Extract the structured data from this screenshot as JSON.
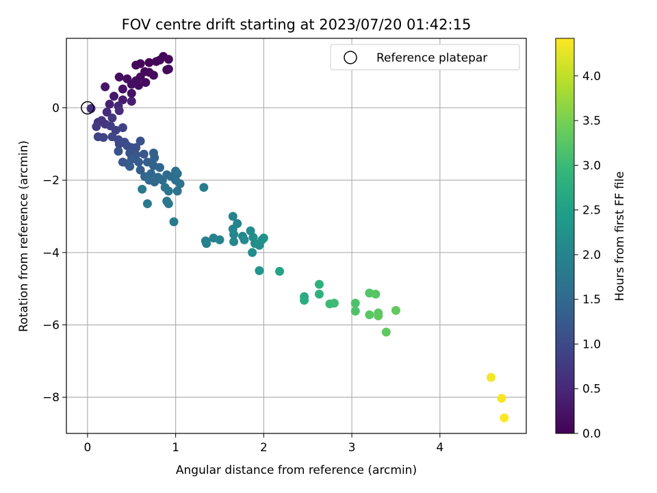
{
  "chart_data": {
    "type": "scatter",
    "title": "FOV centre drift starting at 2023/07/20 01:42:15",
    "xlabel": "Angular distance from reference (arcmin)",
    "ylabel": "Rotation from reference (arcmin)",
    "xlim": [
      -0.24,
      4.98
    ],
    "ylim": [
      -9.0,
      1.92
    ],
    "xticks": [
      0,
      1,
      2,
      3,
      4
    ],
    "yticks": [
      0,
      -2,
      -4,
      -6,
      -8
    ],
    "grid": true,
    "legend": {
      "label": "Reference platepar",
      "placement": "top-right"
    },
    "reference_point": {
      "x": 0,
      "y": 0
    },
    "colorbar": {
      "label": "Hours from first FF file",
      "min": 0.0,
      "max": 4.42,
      "ticks": [
        0.0,
        0.5,
        1.0,
        1.5,
        2.0,
        2.5,
        3.0,
        3.5,
        4.0
      ],
      "tick_labels": [
        "0.0",
        "0.5",
        "1.0",
        "1.5",
        "2.0",
        "2.5",
        "3.0",
        "3.5",
        "4.0"
      ],
      "colormap": [
        "#440154",
        "#482878",
        "#3e4989",
        "#31688e",
        "#26828e",
        "#1f9e89",
        "#35b779",
        "#6ece58",
        "#b5de2b",
        "#fde725"
      ]
    },
    "points": [
      {
        "x": 0.55,
        "y": 1.18,
        "c": 0.05
      },
      {
        "x": 0.6,
        "y": 1.22,
        "c": 0.05
      },
      {
        "x": 0.7,
        "y": 1.25,
        "c": 0.06
      },
      {
        "x": 0.78,
        "y": 1.28,
        "c": 0.07
      },
      {
        "x": 0.82,
        "y": 1.32,
        "c": 0.08
      },
      {
        "x": 0.86,
        "y": 1.42,
        "c": 0.08
      },
      {
        "x": 0.92,
        "y": 1.34,
        "c": 0.09
      },
      {
        "x": 0.9,
        "y": 1.05,
        "c": 0.09
      },
      {
        "x": 0.92,
        "y": 1.07,
        "c": 0.1
      },
      {
        "x": 0.65,
        "y": 1.0,
        "c": 0.1
      },
      {
        "x": 0.7,
        "y": 0.98,
        "c": 0.11
      },
      {
        "x": 0.75,
        "y": 0.9,
        "c": 0.12
      },
      {
        "x": 0.6,
        "y": 0.85,
        "c": 0.12
      },
      {
        "x": 0.66,
        "y": 0.7,
        "c": 0.13
      },
      {
        "x": 0.58,
        "y": 0.62,
        "c": 0.14
      },
      {
        "x": 0.55,
        "y": 0.75,
        "c": 0.15
      },
      {
        "x": 0.5,
        "y": 0.65,
        "c": 0.16
      },
      {
        "x": 0.45,
        "y": 0.8,
        "c": 0.17
      },
      {
        "x": 0.36,
        "y": 0.85,
        "c": 0.18
      },
      {
        "x": 0.4,
        "y": 0.52,
        "c": 0.2
      },
      {
        "x": 0.5,
        "y": 0.4,
        "c": 0.22
      },
      {
        "x": 0.2,
        "y": 0.58,
        "c": 0.25
      },
      {
        "x": 0.3,
        "y": 0.32,
        "c": 0.3
      },
      {
        "x": 0.4,
        "y": 0.22,
        "c": 0.34
      },
      {
        "x": 0.5,
        "y": 0.18,
        "c": 0.38
      },
      {
        "x": 0.25,
        "y": 0.1,
        "c": 0.42
      },
      {
        "x": 0.35,
        "y": 0.05,
        "c": 0.46
      },
      {
        "x": 0.22,
        "y": -0.12,
        "c": 0.52
      },
      {
        "x": 0.36,
        "y": -0.08,
        "c": 0.56
      },
      {
        "x": 0.04,
        "y": -0.02,
        "c": 0.6
      },
      {
        "x": 0.12,
        "y": -0.4,
        "c": 0.64
      },
      {
        "x": 0.16,
        "y": -0.35,
        "c": 0.68
      },
      {
        "x": 0.2,
        "y": -0.45,
        "c": 0.72
      },
      {
        "x": 0.28,
        "y": -0.28,
        "c": 0.74
      },
      {
        "x": 0.1,
        "y": -0.52,
        "c": 0.76
      },
      {
        "x": 0.26,
        "y": -0.5,
        "c": 0.8
      },
      {
        "x": 0.32,
        "y": -0.62,
        "c": 0.84
      },
      {
        "x": 0.4,
        "y": -0.55,
        "c": 0.86
      },
      {
        "x": 0.12,
        "y": -0.8,
        "c": 0.88
      },
      {
        "x": 0.18,
        "y": -0.82,
        "c": 0.9
      },
      {
        "x": 0.28,
        "y": -0.8,
        "c": 0.94
      },
      {
        "x": 0.35,
        "y": -0.88,
        "c": 0.98
      },
      {
        "x": 0.42,
        "y": -0.95,
        "c": 1.0
      },
      {
        "x": 0.36,
        "y": -1.0,
        "c": 1.02
      },
      {
        "x": 0.45,
        "y": -1.05,
        "c": 1.04
      },
      {
        "x": 0.5,
        "y": -1.1,
        "c": 1.06
      },
      {
        "x": 0.55,
        "y": -1.1,
        "c": 1.1
      },
      {
        "x": 0.6,
        "y": -0.92,
        "c": 1.12
      },
      {
        "x": 0.35,
        "y": -1.2,
        "c": 1.14
      },
      {
        "x": 0.48,
        "y": -1.25,
        "c": 1.16
      },
      {
        "x": 0.55,
        "y": -1.3,
        "c": 1.18
      },
      {
        "x": 0.64,
        "y": -1.28,
        "c": 1.2
      },
      {
        "x": 0.4,
        "y": -1.5,
        "c": 1.22
      },
      {
        "x": 0.46,
        "y": -1.55,
        "c": 1.24
      },
      {
        "x": 0.5,
        "y": -1.42,
        "c": 1.26
      },
      {
        "x": 0.58,
        "y": -1.5,
        "c": 1.28
      },
      {
        "x": 0.48,
        "y": -1.62,
        "c": 1.3
      },
      {
        "x": 0.6,
        "y": -1.72,
        "c": 1.32
      },
      {
        "x": 0.68,
        "y": -1.5,
        "c": 1.34
      },
      {
        "x": 0.75,
        "y": -1.25,
        "c": 1.36
      },
      {
        "x": 0.76,
        "y": -1.38,
        "c": 1.38
      },
      {
        "x": 0.75,
        "y": -1.6,
        "c": 1.4
      },
      {
        "x": 0.82,
        "y": -1.65,
        "c": 1.42
      },
      {
        "x": 0.65,
        "y": -1.9,
        "c": 1.44
      },
      {
        "x": 0.72,
        "y": -1.82,
        "c": 1.46
      },
      {
        "x": 0.7,
        "y": -2.0,
        "c": 1.48
      },
      {
        "x": 0.76,
        "y": -2.05,
        "c": 1.5
      },
      {
        "x": 0.8,
        "y": -1.92,
        "c": 1.52
      },
      {
        "x": 0.85,
        "y": -2.0,
        "c": 1.54
      },
      {
        "x": 0.9,
        "y": -1.85,
        "c": 1.56
      },
      {
        "x": 0.95,
        "y": -1.9,
        "c": 1.58
      },
      {
        "x": 1.0,
        "y": -1.75,
        "c": 1.6
      },
      {
        "x": 1.02,
        "y": -1.82,
        "c": 1.62
      },
      {
        "x": 1.0,
        "y": -2.0,
        "c": 1.64
      },
      {
        "x": 1.05,
        "y": -2.1,
        "c": 1.66
      },
      {
        "x": 1.02,
        "y": -2.3,
        "c": 1.68
      },
      {
        "x": 0.88,
        "y": -2.2,
        "c": 1.7
      },
      {
        "x": 0.92,
        "y": -2.3,
        "c": 1.72
      },
      {
        "x": 0.9,
        "y": -2.58,
        "c": 1.74
      },
      {
        "x": 0.92,
        "y": -2.65,
        "c": 1.76
      },
      {
        "x": 0.62,
        "y": -2.25,
        "c": 1.78
      },
      {
        "x": 0.68,
        "y": -2.65,
        "c": 1.8
      },
      {
        "x": 0.98,
        "y": -3.15,
        "c": 1.84
      },
      {
        "x": 1.32,
        "y": -2.2,
        "c": 1.86
      },
      {
        "x": 1.34,
        "y": -3.68,
        "c": 1.9
      },
      {
        "x": 1.35,
        "y": -3.75,
        "c": 1.92
      },
      {
        "x": 1.43,
        "y": -3.6,
        "c": 1.94
      },
      {
        "x": 1.5,
        "y": -3.65,
        "c": 1.96
      },
      {
        "x": 1.65,
        "y": -3.0,
        "c": 1.98
      },
      {
        "x": 1.7,
        "y": -3.2,
        "c": 2.0
      },
      {
        "x": 1.65,
        "y": -3.35,
        "c": 2.02
      },
      {
        "x": 1.66,
        "y": -3.5,
        "c": 2.04
      },
      {
        "x": 1.66,
        "y": -3.7,
        "c": 2.06
      },
      {
        "x": 1.76,
        "y": -3.55,
        "c": 2.08
      },
      {
        "x": 1.78,
        "y": -3.65,
        "c": 2.1
      },
      {
        "x": 1.85,
        "y": -3.4,
        "c": 2.12
      },
      {
        "x": 1.88,
        "y": -3.58,
        "c": 2.14
      },
      {
        "x": 1.9,
        "y": -3.75,
        "c": 2.16
      },
      {
        "x": 1.87,
        "y": -4.0,
        "c": 2.18
      },
      {
        "x": 1.95,
        "y": -3.8,
        "c": 2.2
      },
      {
        "x": 1.98,
        "y": -3.65,
        "c": 2.22
      },
      {
        "x": 2.0,
        "y": -3.6,
        "c": 2.24
      },
      {
        "x": 1.95,
        "y": -4.5,
        "c": 2.3
      },
      {
        "x": 2.18,
        "y": -4.52,
        "c": 2.55
      },
      {
        "x": 2.46,
        "y": -5.22,
        "c": 2.7
      },
      {
        "x": 2.46,
        "y": -5.32,
        "c": 2.72
      },
      {
        "x": 2.63,
        "y": -4.88,
        "c": 2.8
      },
      {
        "x": 2.63,
        "y": -5.15,
        "c": 2.82
      },
      {
        "x": 2.75,
        "y": -5.42,
        "c": 3.0
      },
      {
        "x": 2.8,
        "y": -5.4,
        "c": 3.02
      },
      {
        "x": 3.04,
        "y": -5.4,
        "c": 3.15
      },
      {
        "x": 3.04,
        "y": -5.62,
        "c": 3.17
      },
      {
        "x": 3.2,
        "y": -5.12,
        "c": 3.22
      },
      {
        "x": 3.27,
        "y": -5.15,
        "c": 3.24
      },
      {
        "x": 3.2,
        "y": -5.72,
        "c": 3.26
      },
      {
        "x": 3.3,
        "y": -5.67,
        "c": 3.28
      },
      {
        "x": 3.3,
        "y": -5.75,
        "c": 3.3
      },
      {
        "x": 3.39,
        "y": -6.2,
        "c": 3.32
      },
      {
        "x": 3.5,
        "y": -5.6,
        "c": 3.34
      },
      {
        "x": 4.58,
        "y": -7.45,
        "c": 4.35
      },
      {
        "x": 4.7,
        "y": -8.03,
        "c": 4.38
      },
      {
        "x": 4.73,
        "y": -8.57,
        "c": 4.42
      }
    ]
  }
}
